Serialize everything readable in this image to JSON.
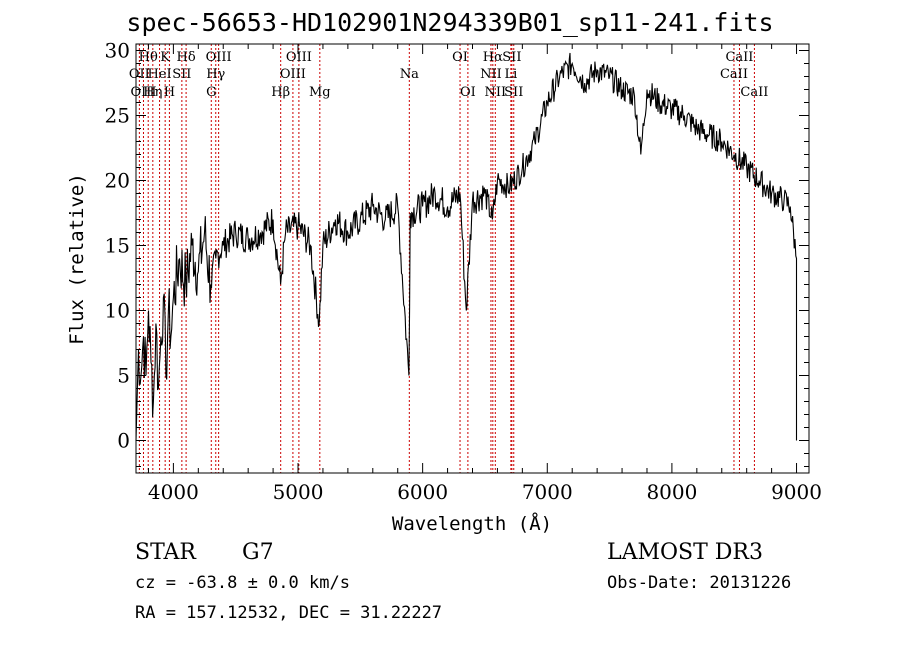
{
  "chart_data": {
    "type": "line",
    "title": "spec-56653-HD102901N294339B01_sp11-241.fits",
    "xlabel": "Wavelength (Å)",
    "ylabel": "Flux (relative)",
    "xlim": [
      3700,
      9100
    ],
    "ylim": [
      -2.5,
      30.5
    ],
    "x_ticks": [
      4000,
      5000,
      6000,
      7000,
      8000,
      9000
    ],
    "y_ticks": [
      0,
      5,
      10,
      15,
      20,
      25,
      30
    ],
    "series": [
      {
        "name": "flux",
        "x": [
          3700,
          3720,
          3740,
          3760,
          3780,
          3800,
          3820,
          3840,
          3860,
          3880,
          3900,
          3920,
          3940,
          3960,
          3980,
          4000,
          4050,
          4100,
          4150,
          4200,
          4250,
          4300,
          4340,
          4400,
          4500,
          4600,
          4700,
          4800,
          4860,
          4900,
          5000,
          5100,
          5170,
          5200,
          5300,
          5400,
          5500,
          5600,
          5700,
          5800,
          5890,
          5900,
          6000,
          6100,
          6200,
          6300,
          6350,
          6400,
          6500,
          6560,
          6600,
          6700,
          6800,
          6900,
          7000,
          7100,
          7200,
          7300,
          7400,
          7500,
          7600,
          7700,
          7750,
          7800,
          7900,
          8000,
          8100,
          8200,
          8300,
          8400,
          8500,
          8600,
          8700,
          8800,
          8900,
          8950,
          9000
        ],
        "y": [
          0,
          7,
          5,
          8,
          5,
          10,
          6,
          3,
          9,
          4,
          8,
          11,
          5,
          10,
          8,
          11,
          14,
          12,
          15,
          13,
          16,
          12,
          14,
          15,
          16,
          15.5,
          16,
          17,
          12,
          16,
          16.5,
          15,
          9,
          15,
          17,
          16,
          17,
          18,
          17,
          18,
          5,
          17.5,
          18,
          19,
          18,
          19,
          10,
          18.5,
          19,
          17,
          20,
          19.5,
          21,
          23,
          26,
          28,
          29,
          27.5,
          28.5,
          28,
          27,
          26.5,
          22,
          27,
          26,
          25.5,
          25,
          24,
          23.5,
          23,
          22,
          21,
          20,
          19,
          18.5,
          18,
          14
        ]
      }
    ],
    "spectral_lines": [
      {
        "name": "Hθ",
        "x": 3798,
        "row": 1
      },
      {
        "name": "OII",
        "x": 3727,
        "row": 2
      },
      {
        "name": "OIII",
        "x": 3760,
        "row": 3
      },
      {
        "name": "Hη",
        "x": 3835,
        "row": 3
      },
      {
        "name": "HeI",
        "x": 3889,
        "row": 2
      },
      {
        "name": "K",
        "x": 3934,
        "row": 1
      },
      {
        "name": "H",
        "x": 3968,
        "row": 3
      },
      {
        "name": "Hδ",
        "x": 4102,
        "row": 1
      },
      {
        "name": "SII",
        "x": 4068,
        "row": 2
      },
      {
        "name": "OIII",
        "x": 4363,
        "row": 1
      },
      {
        "name": "Hγ",
        "x": 4340,
        "row": 2
      },
      {
        "name": "G",
        "x": 4304,
        "row": 3
      },
      {
        "name": "Hβ",
        "x": 4861,
        "row": 3
      },
      {
        "name": "OIII",
        "x": 5007,
        "row": 1
      },
      {
        "name": "OIII",
        "x": 4959,
        "row": 2
      },
      {
        "name": "Mg",
        "x": 5175,
        "row": 3
      },
      {
        "name": "Na",
        "x": 5893,
        "row": 2
      },
      {
        "name": "OI",
        "x": 6300,
        "row": 1
      },
      {
        "name": "OI",
        "x": 6363,
        "row": 3
      },
      {
        "name": "Hα",
        "x": 6563,
        "row": 1
      },
      {
        "name": "NII",
        "x": 6548,
        "row": 2
      },
      {
        "name": "NII",
        "x": 6583,
        "row": 3
      },
      {
        "name": "SII",
        "x": 6716,
        "row": 1
      },
      {
        "name": "Li",
        "x": 6708,
        "row": 2
      },
      {
        "name": "SII",
        "x": 6731,
        "row": 3
      },
      {
        "name": "CaII",
        "x": 8542,
        "row": 1
      },
      {
        "name": "CaII",
        "x": 8498,
        "row": 2
      },
      {
        "name": "CaII",
        "x": 8662,
        "row": 3
      }
    ]
  },
  "info": {
    "object_class": "STAR",
    "subclass": "G7",
    "survey": "LAMOST DR3",
    "cz": "cz = -63.8 ± 0.0 km/s",
    "obs_date": "Obs-Date: 20131226",
    "coords": "RA = 157.12532, DEC =  31.22227"
  },
  "colors": {
    "line": "#000000",
    "marker": "#cc0000"
  }
}
